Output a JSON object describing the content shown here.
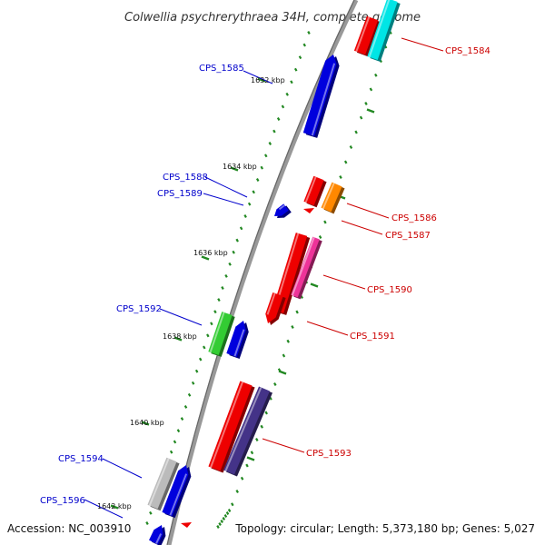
{
  "title": "Colwellia psychrerythraea 34H, complete genome",
  "footer": {
    "accession": "Accession: NC_003910",
    "topology": "Topology: circular; Length: 5,373,180 bp; Genes: 5,027"
  },
  "colors": {
    "forward_label": "#cc0000",
    "reverse_label": "#0000cc",
    "backbone": "#888888",
    "tick": "#228822"
  },
  "kbp_labels": [
    "1632 kbp",
    "1634 kbp",
    "1636 kbp",
    "1638 kbp",
    "1640 kbp",
    "1642 kbp"
  ],
  "genes": [
    {
      "id": "CPS_1584",
      "strand": "forward",
      "color": "#00e5e5"
    },
    {
      "id": "CPS_1585",
      "strand": "reverse",
      "color": "#0000dd"
    },
    {
      "id": "CPS_1586",
      "strand": "forward",
      "color": "#ff8800"
    },
    {
      "id": "CPS_1587",
      "strand": "forward",
      "color": "#ee0000"
    },
    {
      "id": "CPS_1588",
      "strand": "reverse",
      "color": "#0000dd"
    },
    {
      "id": "CPS_1589",
      "strand": "reverse",
      "color": "#0000dd"
    },
    {
      "id": "CPS_1590",
      "strand": "forward",
      "color": "#ee3399"
    },
    {
      "id": "CPS_1591",
      "strand": "forward",
      "color": "#ee0000"
    },
    {
      "id": "CPS_1592",
      "strand": "reverse",
      "color": "#33cc33"
    },
    {
      "id": "CPS_1593",
      "strand": "forward",
      "color": "#443388"
    },
    {
      "id": "CPS_1594",
      "strand": "reverse",
      "color": "#bbbbbb"
    },
    {
      "id": "CPS_1596",
      "strand": "reverse",
      "color": "#0000dd"
    }
  ]
}
